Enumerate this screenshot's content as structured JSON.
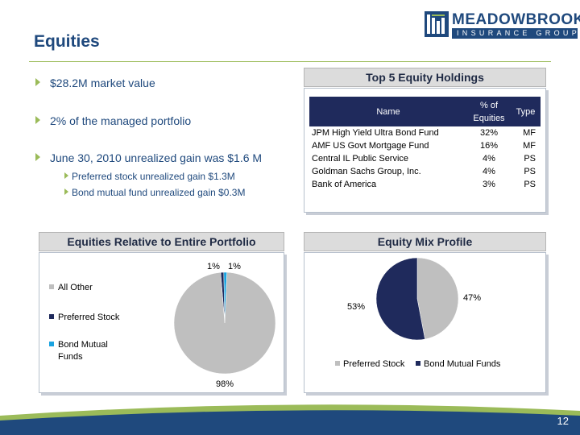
{
  "header": {
    "title": "Equities",
    "logo_name": "MEADOWBROOK",
    "logo_sub": "INSURANCE GROUP"
  },
  "bullets": [
    "$28.2M market value",
    "2% of the managed portfolio",
    "June 30, 2010 unrealized gain was $1.6 M"
  ],
  "sub_bullets": [
    "Preferred stock unrealized gain  $1.3M",
    "Bond mutual fund  unrealized gain $0.3M"
  ],
  "holdings": {
    "title": "Top 5 Equity Holdings",
    "columns": [
      "Name",
      "% of Equities",
      "Type"
    ],
    "column_lines": {
      "pct_line1": "% of",
      "pct_line2": "Equities"
    },
    "rows": [
      {
        "name": "JPM High Yield Ultra Bond Fund",
        "pct": "32%",
        "type": "MF"
      },
      {
        "name": "AMF US Govt Mortgage Fund",
        "pct": "16%",
        "type": "MF"
      },
      {
        "name": "Central IL Public Service",
        "pct": "4%",
        "type": "PS"
      },
      {
        "name": "Goldman Sachs Group, Inc.",
        "pct": "4%",
        "type": "PS"
      },
      {
        "name": "Bank of America",
        "pct": "3%",
        "type": "PS"
      }
    ]
  },
  "colors": {
    "navy": "#1f2a5c",
    "gray": "#bfbfbf",
    "light_blue": "#1aa3e0",
    "accent_green": "#9bbb59",
    "title_blue": "#1f497d"
  },
  "chart_data": [
    {
      "type": "pie",
      "title": "Equities Relative to Entire Portfolio",
      "categories": [
        "All Other",
        "Preferred Stock",
        "Bond Mutual Funds"
      ],
      "values": [
        98,
        1,
        1
      ],
      "labels": [
        "98%",
        "1%",
        "1%"
      ],
      "legend": "left",
      "colors": [
        "#bfbfbf",
        "#1f2a5c",
        "#1aa3e0"
      ]
    },
    {
      "type": "pie",
      "title": "Equity Mix Profile",
      "categories": [
        "Preferred Stock",
        "Bond Mutual Funds"
      ],
      "values": [
        47,
        53
      ],
      "labels": [
        "47%",
        "53%"
      ],
      "legend": "bottom",
      "colors": [
        "#bfbfbf",
        "#1f2a5c"
      ]
    }
  ],
  "page": {
    "number": "12"
  }
}
